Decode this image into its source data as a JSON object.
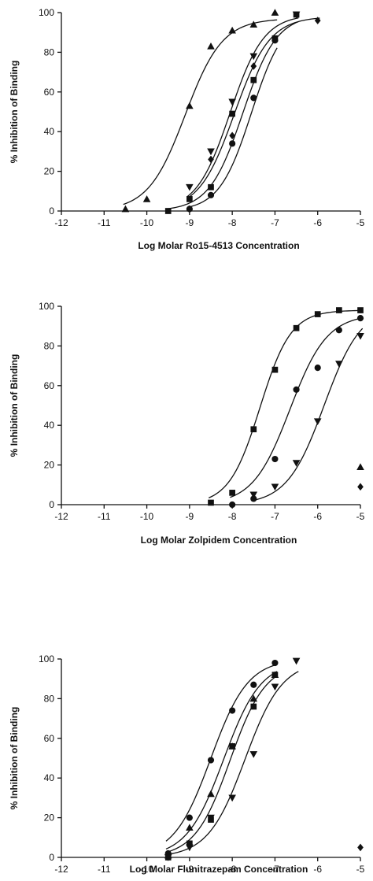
{
  "chart_data": [
    {
      "type": "scatter",
      "xlabel": "Log Molar Ro15-4513 Concentration",
      "ylabel": "% Inhibition of Binding",
      "xlim": [
        -12,
        -5
      ],
      "ylim": [
        0,
        100
      ],
      "xticks": [
        -12,
        -11,
        -10,
        -9,
        -8,
        -7,
        -6,
        -5
      ],
      "yticks": [
        0,
        20,
        40,
        60,
        80,
        100
      ],
      "xtick_labels": [
        "-12",
        "-11",
        "-10",
        "-9",
        "-8",
        "-7",
        "-6",
        "-5"
      ],
      "ytick_labels": [
        "0",
        "20",
        "40",
        "60",
        "80",
        "100"
      ],
      "series": [
        {
          "marker": "triangle-up",
          "points": [
            [
              -10.5,
              1
            ],
            [
              -10,
              6
            ],
            [
              -9,
              53
            ],
            [
              -8.5,
              83
            ],
            [
              -8,
              91
            ],
            [
              -7.5,
              94
            ],
            [
              -7,
              100
            ]
          ],
          "fit": {
            "bottom": 0,
            "top": 97,
            "logEC50": -9.1,
            "hill": 1.0
          }
        },
        {
          "marker": "triangle-down",
          "points": [
            [
              -9,
              12
            ],
            [
              -8.5,
              30
            ],
            [
              -8,
              55
            ],
            [
              -7.5,
              78
            ],
            [
              -6.5,
              99
            ]
          ],
          "fit": {
            "bottom": 0,
            "top": 99,
            "logEC50": -8.05,
            "hill": 1.1
          }
        },
        {
          "marker": "diamond",
          "points": [
            [
              -9,
              1
            ],
            [
              -8.5,
              26
            ],
            [
              -8,
              38
            ],
            [
              -7.5,
              73
            ],
            [
              -6,
              96
            ]
          ],
          "fit": {
            "bottom": 0,
            "top": 98,
            "logEC50": -7.95,
            "hill": 1.05
          }
        },
        {
          "marker": "square",
          "points": [
            [
              -9.5,
              0
            ],
            [
              -9,
              6
            ],
            [
              -8.5,
              12
            ],
            [
              -8,
              49
            ],
            [
              -7.5,
              66
            ],
            [
              -7,
              87
            ],
            [
              -6.5,
              99
            ]
          ],
          "fit": {
            "bottom": 0,
            "top": 99,
            "logEC50": -7.75,
            "hill": 1.1
          }
        },
        {
          "marker": "circle",
          "points": [
            [
              -9,
              1
            ],
            [
              -8.5,
              8
            ],
            [
              -8,
              34
            ],
            [
              -7.5,
              57
            ],
            [
              -7,
              86
            ]
          ],
          "fit": {
            "bottom": 0,
            "top": 99,
            "logEC50": -7.55,
            "hill": 1.15
          }
        }
      ]
    },
    {
      "type": "scatter",
      "xlabel": "Log Molar Zolpidem Concentration",
      "ylabel": "% Inhibition of Binding",
      "xlim": [
        -12,
        -5
      ],
      "ylim": [
        0,
        100
      ],
      "xticks": [
        -12,
        -11,
        -10,
        -9,
        -8,
        -7,
        -6,
        -5
      ],
      "yticks": [
        0,
        20,
        40,
        60,
        80,
        100
      ],
      "xtick_labels": [
        "-12",
        "-11",
        "-10",
        "-9",
        "-8",
        "-7",
        "-6",
        "-5"
      ],
      "ytick_labels": [
        "0",
        "20",
        "40",
        "60",
        "80",
        "100"
      ],
      "series": [
        {
          "marker": "square",
          "points": [
            [
              -8.5,
              1
            ],
            [
              -8,
              6
            ],
            [
              -7.5,
              38
            ],
            [
              -7,
              68
            ],
            [
              -6.5,
              89
            ],
            [
              -6,
              96
            ],
            [
              -5.5,
              98
            ],
            [
              -5,
              98
            ]
          ],
          "fit": {
            "bottom": 0,
            "top": 98,
            "logEC50": -7.35,
            "hill": 1.2
          }
        },
        {
          "marker": "circle",
          "points": [
            [
              -8,
              0
            ],
            [
              -7.5,
              3
            ],
            [
              -7,
              23
            ],
            [
              -6.5,
              58
            ],
            [
              -6,
              69
            ],
            [
              -5.5,
              88
            ],
            [
              -5,
              94
            ]
          ],
          "fit": {
            "bottom": 0,
            "top": 96,
            "logEC50": -6.65,
            "hill": 1.0
          }
        },
        {
          "marker": "triangle-down",
          "points": [
            [
              -7.5,
              5
            ],
            [
              -7,
              9
            ],
            [
              -6.5,
              21
            ],
            [
              -6,
              42
            ],
            [
              -5.5,
              71
            ],
            [
              -5,
              85
            ]
          ],
          "fit": {
            "bottom": 0,
            "top": 100,
            "logEC50": -5.85,
            "hill": 1.0
          }
        },
        {
          "marker": "triangle-up",
          "points": [
            [
              -5,
              19
            ]
          ],
          "fit": null
        },
        {
          "marker": "diamond",
          "points": [
            [
              -5,
              9
            ]
          ],
          "fit": null
        }
      ]
    },
    {
      "type": "scatter",
      "xlabel": "Log Molar Flunitrazepam Concentration",
      "ylabel": "% Inhibition of Binding",
      "xlim": [
        -12,
        -5
      ],
      "ylim": [
        0,
        100
      ],
      "xticks": [
        -12,
        -11,
        -10,
        -9,
        -8,
        -7,
        -6,
        -5
      ],
      "yticks": [
        0,
        20,
        40,
        60,
        80,
        100
      ],
      "xtick_labels": [
        "-12",
        "-11",
        "-10",
        "-9",
        "-8",
        "-7",
        "-6",
        "-5"
      ],
      "ytick_labels": [
        "0",
        "20",
        "40",
        "60",
        "80",
        "100"
      ],
      "series": [
        {
          "marker": "circle",
          "points": [
            [
              -9.5,
              2
            ],
            [
              -9,
              20
            ],
            [
              -8.5,
              49
            ],
            [
              -8,
              74
            ],
            [
              -7.5,
              87
            ],
            [
              -7,
              98
            ]
          ],
          "fit": {
            "bottom": 0,
            "top": 100,
            "logEC50": -8.5,
            "hill": 1.0
          }
        },
        {
          "marker": "triangle-up",
          "points": [
            [
              -9.5,
              1
            ],
            [
              -9,
              15
            ],
            [
              -8.5,
              32
            ],
            [
              -8,
              56
            ],
            [
              -7.5,
              80
            ],
            [
              -7,
              92
            ]
          ],
          "fit": {
            "bottom": 0,
            "top": 99,
            "logEC50": -8.2,
            "hill": 1.0
          }
        },
        {
          "marker": "square",
          "points": [
            [
              -9.5,
              0
            ],
            [
              -9,
              7
            ],
            [
              -8.5,
              19
            ],
            [
              -8,
              56
            ],
            [
              -7.5,
              76
            ],
            [
              -7,
              92
            ]
          ],
          "fit": {
            "bottom": 0,
            "top": 98,
            "logEC50": -8.05,
            "hill": 1.05
          }
        },
        {
          "marker": "triangle-down",
          "points": [
            [
              -9.5,
              0
            ],
            [
              -9,
              5
            ],
            [
              -8.5,
              20
            ],
            [
              -8,
              30
            ],
            [
              -7.5,
              52
            ],
            [
              -7,
              86
            ],
            [
              -6.5,
              99
            ]
          ],
          "fit": {
            "bottom": 0,
            "top": 99,
            "logEC50": -7.7,
            "hill": 1.0
          }
        },
        {
          "marker": "diamond",
          "points": [
            [
              -5,
              5
            ]
          ],
          "fit": null
        }
      ]
    }
  ]
}
